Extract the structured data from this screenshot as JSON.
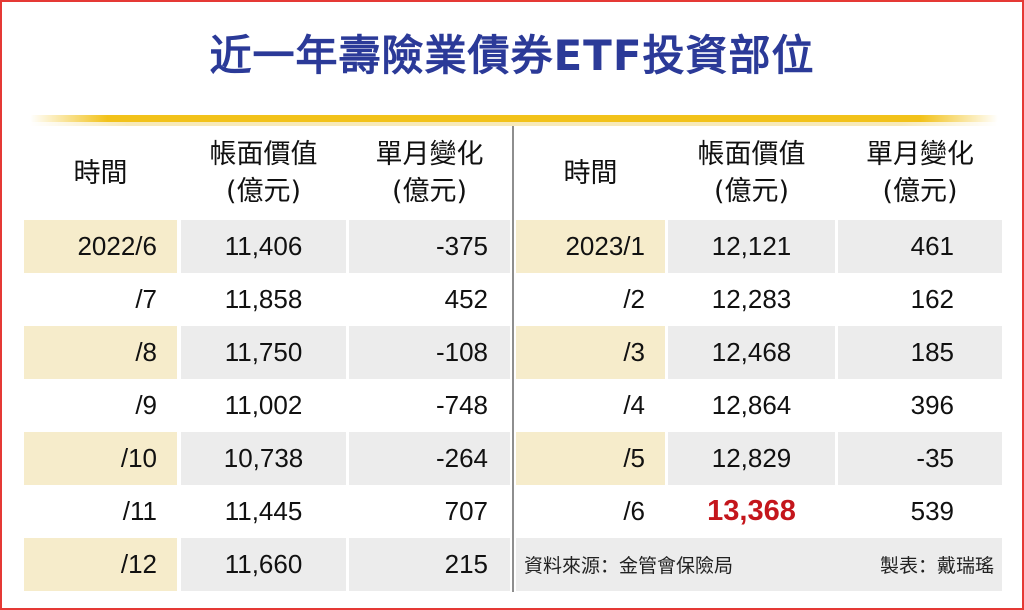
{
  "title": "近一年壽險業債券ETF投資部位",
  "headers": {
    "time": "時間",
    "book_value_line1": "帳面價值",
    "book_value_line2": "(億元)",
    "monthly_change_line1": "單月變化",
    "monthly_change_line2": "(億元)"
  },
  "left_rows": [
    {
      "time": "2022/6",
      "value": "11,406",
      "change": "-375"
    },
    {
      "time": "/7",
      "value": "11,858",
      "change": "452"
    },
    {
      "time": "/8",
      "value": "11,750",
      "change": "-108"
    },
    {
      "time": "/9",
      "value": "11,002",
      "change": "-748"
    },
    {
      "time": "/10",
      "value": "10,738",
      "change": "-264"
    },
    {
      "time": "/11",
      "value": "11,445",
      "change": "707"
    },
    {
      "time": "/12",
      "value": "11,660",
      "change": "215"
    }
  ],
  "right_rows": [
    {
      "time": "2023/1",
      "value": "12,121",
      "change": "461"
    },
    {
      "time": "/2",
      "value": "12,283",
      "change": "162"
    },
    {
      "time": "/3",
      "value": "12,468",
      "change": "185"
    },
    {
      "time": "/4",
      "value": "12,864",
      "change": "396"
    },
    {
      "time": "/5",
      "value": "12,829",
      "change": "-35"
    },
    {
      "time": "/6",
      "value": "13,368",
      "change": "539"
    }
  ],
  "footer": {
    "source": "資料來源：金管會保險局",
    "author": "製表：戴瑞瑤"
  },
  "colors": {
    "title": "#2b3a98",
    "highlight": "#c4161c",
    "rule": "#f2c21a",
    "frame": "#e53935",
    "time_shade": "#f6eccb",
    "value_shade": "#ececec"
  },
  "chart_data": {
    "type": "table",
    "title": "近一年壽險業債券ETF投資部位",
    "columns": [
      "時間",
      "帳面價值(億元)",
      "單月變化(億元)"
    ],
    "rows": [
      [
        "2022/6",
        11406,
        -375
      ],
      [
        "2022/7",
        11858,
        452
      ],
      [
        "2022/8",
        11750,
        -108
      ],
      [
        "2022/9",
        11002,
        -748
      ],
      [
        "2022/10",
        10738,
        -264
      ],
      [
        "2022/11",
        11445,
        707
      ],
      [
        "2022/12",
        11660,
        215
      ],
      [
        "2023/1",
        12121,
        461
      ],
      [
        "2023/2",
        12283,
        162
      ],
      [
        "2023/3",
        12468,
        185
      ],
      [
        "2023/4",
        12864,
        396
      ],
      [
        "2023/5",
        12829,
        -35
      ],
      [
        "2023/6",
        13368,
        539
      ]
    ],
    "highlighted_cell": "13,368",
    "source": "資料來源：金管會保險局",
    "author": "製表：戴瑞瑤"
  }
}
